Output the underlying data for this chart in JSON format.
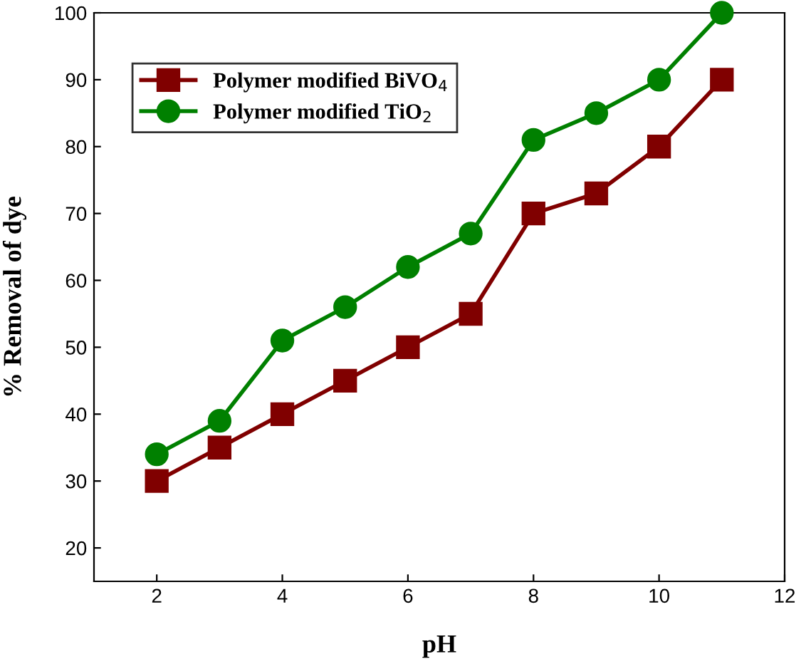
{
  "chart_data": {
    "type": "line",
    "xlabel": "pH",
    "ylabel": "% Removal of dye",
    "x": [
      2,
      3,
      4,
      5,
      6,
      7,
      8,
      9,
      10,
      11
    ],
    "series": [
      {
        "name": "Polymer modified BiVO$_{4}$",
        "color": "#800000",
        "marker": "square",
        "values": [
          30,
          35,
          40,
          45,
          50,
          55,
          70,
          73,
          80,
          90
        ]
      },
      {
        "name": "Polymer modified TiO$_{2}$",
        "color": "#008000",
        "marker": "circle",
        "values": [
          34,
          39,
          51,
          56,
          62,
          67,
          81,
          85,
          90,
          100
        ]
      }
    ],
    "xlim": [
      1,
      12
    ],
    "xticks": [
      2,
      4,
      6,
      8,
      10,
      12
    ],
    "ylim": [
      15,
      100
    ],
    "yticks": [
      20,
      30,
      40,
      50,
      60,
      70,
      80,
      90,
      100
    ],
    "legend": "top left",
    "grid": false,
    "line_style": "solid"
  }
}
